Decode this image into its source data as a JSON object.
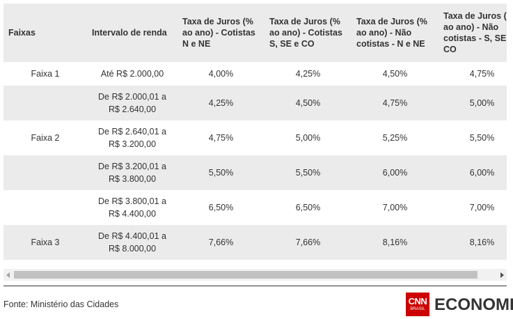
{
  "table": {
    "header": [
      "Faixas",
      "Intervalo de renda",
      "Taxa de Juros (% ao ano) - Cotistas N e NE",
      "Taxa de Juros (% ao ano) - Cotistas S, SE e CO",
      "Taxa de Juros (% ao ano) - Não cotistas - N e NE",
      "Taxa de Juros (% ao ano) - Não cotistas - S, SE e CO"
    ],
    "rows": [
      [
        "Faixa 1",
        "Até R$ 2.000,00",
        "4,00%",
        "4,25%",
        "4,50%",
        "4,75%"
      ],
      [
        null,
        "De R$ 2.000,01 a R$ 2.640,00",
        "4,25%",
        "4,50%",
        "4,75%",
        "5,00%"
      ],
      [
        "Faixa 2",
        "De R$ 2.640,01 a R$ 3.200,00",
        "4,75%",
        "5,00%",
        "5,25%",
        "5,50%"
      ],
      [
        null,
        "De R$ 3.200,01 a R$ 3.800,00",
        "5,50%",
        "5,50%",
        "6,00%",
        "6,00%"
      ],
      [
        null,
        "De R$ 3.800,01 a R$ 4.400,00",
        "6,50%",
        "6,50%",
        "7,00%",
        "7,00%"
      ],
      [
        "Faixa 3",
        "De R$ 4.400,01 a R$ 8.000,00",
        "7,66%",
        "7,66%",
        "8,16%",
        "8,16%"
      ]
    ]
  },
  "source": "Fonte: Ministério das Cidades",
  "logo": {
    "mark": "CNN",
    "sub": "BRASIL",
    "name": "ECONOMIA"
  }
}
